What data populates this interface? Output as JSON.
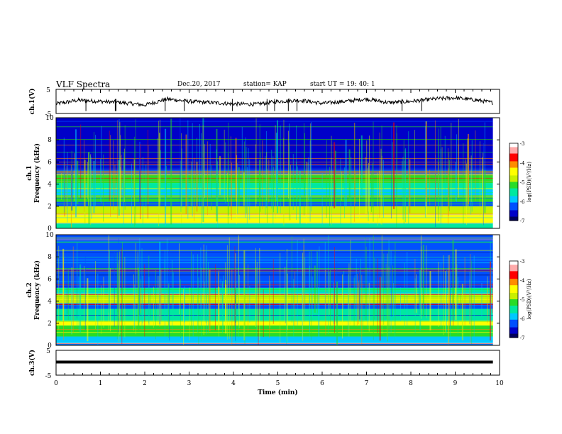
{
  "header": {
    "title": "VLF Spectra",
    "date": "Dec.20, 2017",
    "station": "station= KAP",
    "start_ut": "start  UT  =    19: 40: 1"
  },
  "chart_data": [
    {
      "type": "line",
      "panel": "ch1_waveform",
      "ylabel": "ch.1(V)",
      "ylim": [
        -5,
        5
      ],
      "yticks": [
        "5",
        "-5"
      ],
      "x_range_min": [
        0,
        9.85
      ],
      "description_values": {
        "x_min": [
          0,
          0.5,
          1,
          1.5,
          2,
          2.5,
          3,
          3.5,
          4,
          4.5,
          5,
          5.5,
          6,
          6.5,
          7,
          7.5,
          8,
          8.5,
          9,
          9.5,
          9.85
        ],
        "y_volts": [
          -1,
          0.5,
          0,
          -0.5,
          -1.5,
          1,
          0,
          -0.5,
          -1,
          -1.2,
          0,
          0.5,
          -0.8,
          0,
          1,
          -0.5,
          0,
          1,
          1.5,
          0.5,
          -0.5
        ]
      }
    },
    {
      "type": "heatmap",
      "panel": "ch1_spectrogram",
      "ylabel": "ch.1\nFrequency (kHz)",
      "ylim": [
        0,
        10
      ],
      "yticks": [
        "0",
        "2",
        "4",
        "6",
        "8",
        "10"
      ],
      "colorbar": {
        "label": "log(PSD)(V²/Hz)",
        "range": [
          -7,
          -3
        ],
        "ticks": [
          "-3",
          "-4",
          "-5",
          "-6",
          "-7"
        ]
      },
      "bands_khz": [
        {
          "from": 0,
          "to": 0.5,
          "level": -5.5
        },
        {
          "from": 0.5,
          "to": 1.2,
          "level": -4.3
        },
        {
          "from": 1.2,
          "to": 2.0,
          "level": -5.0
        },
        {
          "from": 2.0,
          "to": 2.4,
          "level": -6.2
        },
        {
          "from": 2.4,
          "to": 3.0,
          "level": -5.3
        },
        {
          "from": 3.0,
          "to": 3.5,
          "level": -6.0
        },
        {
          "from": 3.5,
          "to": 4.1,
          "level": -5.4
        },
        {
          "from": 4.1,
          "to": 4.9,
          "level": -5.1
        },
        {
          "from": 4.9,
          "to": 5.3,
          "level": -6.4
        },
        {
          "from": 5.3,
          "to": 10,
          "level": -6.5
        }
      ]
    },
    {
      "type": "heatmap",
      "panel": "ch2_spectrogram",
      "ylabel": "ch.2\nFrequency (kHz)",
      "ylim": [
        0,
        10
      ],
      "yticks": [
        "0",
        "2",
        "4",
        "6",
        "8",
        "10"
      ],
      "colorbar": {
        "label": "log(PSD)(V²/Hz)",
        "range": [
          -7,
          -3
        ],
        "ticks": [
          "-3",
          "-4",
          "-5",
          "-6",
          "-7"
        ]
      },
      "bands_khz": [
        {
          "from": 0,
          "to": 0.8,
          "level": -6.0
        },
        {
          "from": 0.8,
          "to": 1.8,
          "level": -5.2
        },
        {
          "from": 1.8,
          "to": 2.2,
          "level": -4.6
        },
        {
          "from": 2.2,
          "to": 3.3,
          "level": -5.4
        },
        {
          "from": 3.3,
          "to": 3.8,
          "level": -6.3
        },
        {
          "from": 3.8,
          "to": 4.6,
          "level": -5.0
        },
        {
          "from": 4.6,
          "to": 5.2,
          "level": -5.5
        },
        {
          "from": 5.2,
          "to": 10,
          "level": -6.2
        }
      ]
    },
    {
      "type": "line",
      "panel": "ch3_waveform",
      "ylabel": "ch.3(V)",
      "ylim": [
        -5,
        5
      ],
      "yticks": [
        "5",
        "-5"
      ],
      "xlabel": "Time  (min)",
      "xlim": [
        0,
        10
      ],
      "xticks": [
        "0",
        "1",
        "2",
        "3",
        "4",
        "5",
        "6",
        "7",
        "8",
        "9",
        "10"
      ],
      "constant_y_volts": 0.3,
      "x_range_min": [
        0,
        9.85
      ]
    }
  ],
  "colors": {
    "colormap": [
      "#00005a",
      "#0000c8",
      "#0050ff",
      "#00c8ff",
      "#00e8a0",
      "#28dc28",
      "#c8f000",
      "#ffff00",
      "#ff8c00",
      "#ff0000",
      "#ffaaaa",
      "#ffffff"
    ],
    "axis": "#000000",
    "line": "#000000"
  }
}
